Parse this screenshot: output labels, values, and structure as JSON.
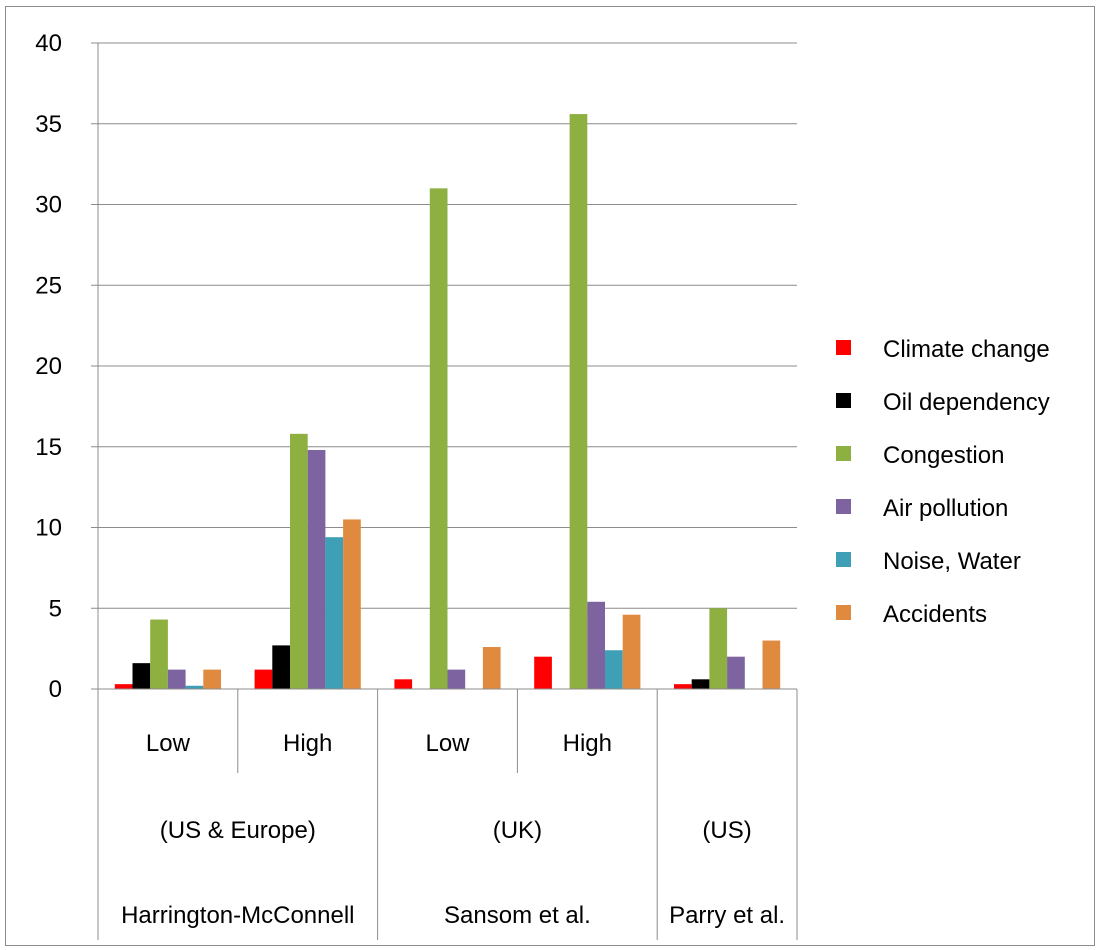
{
  "chart_data": {
    "type": "bar",
    "title": "",
    "xlabel": "",
    "ylabel": "",
    "ylim": [
      0,
      40
    ],
    "yticks": [
      0,
      5,
      10,
      15,
      20,
      25,
      30,
      35,
      40
    ],
    "grid": true,
    "legend_position": "right",
    "categories": [
      {
        "level1": "Low",
        "level2": "(US & Europe)",
        "level3": "Harrington-McConnell"
      },
      {
        "level1": "High",
        "level2": "(US & Europe)",
        "level3": "Harrington-McConnell"
      },
      {
        "level1": "Low",
        "level2": "(UK)",
        "level3": "Sansom et al."
      },
      {
        "level1": "High",
        "level2": "(UK)",
        "level3": "Sansom et al."
      },
      {
        "level1": "",
        "level2": "(US)",
        "level3": "Parry et al."
      }
    ],
    "groups_level2": [
      {
        "label": "(US & Europe)",
        "span": [
          0,
          1
        ]
      },
      {
        "label": "(UK)",
        "span": [
          2,
          3
        ]
      },
      {
        "label": "(US)",
        "span": [
          4,
          4
        ]
      }
    ],
    "groups_level3": [
      {
        "label": "Harrington-McConnell",
        "span": [
          0,
          1
        ]
      },
      {
        "label": "Sansom et al.",
        "span": [
          2,
          3
        ]
      },
      {
        "label": "Parry et al.",
        "span": [
          4,
          4
        ]
      }
    ],
    "series": [
      {
        "name": "Climate change",
        "color": "#ff0000",
        "values": [
          0.3,
          1.2,
          0.6,
          2.0,
          0.3
        ]
      },
      {
        "name": "Oil dependency",
        "color": "#000000",
        "values": [
          1.6,
          2.7,
          0,
          0,
          0.6
        ]
      },
      {
        "name": "Congestion",
        "color": "#8db040",
        "values": [
          4.3,
          15.8,
          31.0,
          35.6,
          5.0
        ]
      },
      {
        "name": "Air pollution",
        "color": "#7d63a0",
        "values": [
          1.2,
          14.8,
          1.2,
          5.4,
          2.0
        ]
      },
      {
        "name": "Noise, Water",
        "color": "#3f9fb7",
        "values": [
          0.2,
          9.4,
          0,
          2.4,
          0
        ]
      },
      {
        "name": "Accidents",
        "color": "#e08a40",
        "values": [
          1.2,
          10.5,
          2.6,
          4.6,
          3.0
        ]
      }
    ]
  }
}
